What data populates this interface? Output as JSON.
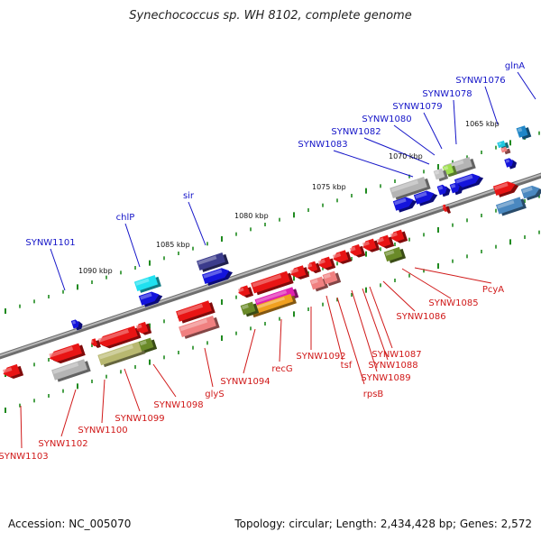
{
  "title": "Synechococcus sp. WH 8102, complete genome",
  "footer": {
    "accession": "Accession: NC_005070",
    "summary": "Topology: circular; Length: 2,434,428 bp; Genes: 2,572"
  },
  "colors": {
    "backbone": "#8a8a8a",
    "tick": "#1f8a1f",
    "label_top": "#1414c8",
    "label_bottom": "#d01818"
  },
  "kbp_labels": [
    "1065 kbp",
    "1070 kbp",
    "1075 kbp",
    "1080 kbp",
    "1085 kbp",
    "1090 kbp"
  ],
  "genes_top": [
    "glnA",
    "SYNW1076",
    "SYNW1078",
    "SYNW1079",
    "SYNW1080",
    "SYNW1082",
    "SYNW1083",
    "sir",
    "chlP",
    "SYNW1101"
  ],
  "genes_bottom": [
    "PcyA",
    "SYNW1085",
    "SYNW1086",
    "SYNW1087",
    "SYNW1088",
    "SYNW1089",
    "rpsB",
    "tsf",
    "SYNW1092",
    "recG",
    "SYNW1094",
    "glyS",
    "SYNW1098",
    "SYNW1099",
    "SYNW1100",
    "SYNW1102",
    "SYNW1103"
  ]
}
